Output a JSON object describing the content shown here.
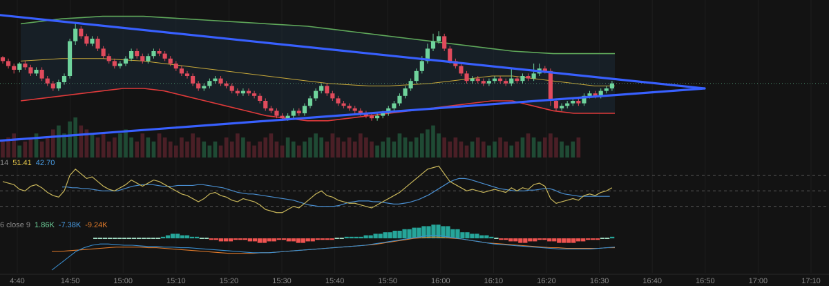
{
  "colors": {
    "background": "#131313",
    "up": "#6fd39c",
    "down": "#e04b5c",
    "trendline": "#3860ff",
    "bb_upper": "#5fa85a",
    "bb_lower": "#e03a3a",
    "bb_basis": "#c8a93a",
    "rsi_line": "#c8b65a",
    "rsi_ma": "#4a8fd1",
    "macd_line": "#3a8fd1",
    "signal_line": "#e07a2a",
    "grid": "#3a3a3a",
    "text": "#8a8a8a"
  },
  "rsi_header": {
    "length": "14",
    "value": "51.41",
    "ma": "42.70"
  },
  "macd_header": {
    "prefix": "6 close 9",
    "hist": "1.86K",
    "macd": "-7.38K",
    "signal": "-9.24K"
  },
  "chart_data": {
    "type": "candlestick",
    "x_axis": {
      "ticks": [
        "4:40",
        "14:50",
        "15:00",
        "15:10",
        "15:20",
        "15:30",
        "15:40",
        "15:50",
        "16:00",
        "16:10",
        "16:20",
        "16:30",
        "16:40",
        "16:50",
        "17:00",
        "17:10"
      ]
    },
    "price": {
      "ylim": [
        0,
        100
      ],
      "candles": [
        [
          65,
          62,
          66,
          60
        ],
        [
          62,
          58,
          64,
          56
        ],
        [
          58,
          55,
          60,
          52
        ],
        [
          55,
          60,
          61,
          53
        ],
        [
          60,
          57,
          62,
          55
        ],
        [
          57,
          52,
          59,
          50
        ],
        [
          52,
          55,
          57,
          50
        ],
        [
          55,
          48,
          57,
          46
        ],
        [
          48,
          44,
          50,
          42
        ],
        [
          44,
          40,
          46,
          38
        ],
        [
          40,
          45,
          47,
          38
        ],
        [
          45,
          50,
          52,
          43
        ],
        [
          50,
          78,
          80,
          48
        ],
        [
          78,
          88,
          92,
          75
        ],
        [
          88,
          82,
          90,
          80
        ],
        [
          82,
          76,
          84,
          74
        ],
        [
          76,
          80,
          82,
          74
        ],
        [
          80,
          72,
          82,
          70
        ],
        [
          72,
          66,
          74,
          64
        ],
        [
          66,
          62,
          68,
          60
        ],
        [
          62,
          58,
          64,
          56
        ],
        [
          58,
          60,
          62,
          56
        ],
        [
          60,
          64,
          66,
          58
        ],
        [
          64,
          70,
          72,
          62
        ],
        [
          70,
          66,
          72,
          64
        ],
        [
          66,
          62,
          68,
          60
        ],
        [
          62,
          66,
          68,
          60
        ],
        [
          66,
          70,
          72,
          64
        ],
        [
          70,
          68,
          72,
          66
        ],
        [
          68,
          64,
          70,
          62
        ],
        [
          64,
          60,
          66,
          58
        ],
        [
          60,
          56,
          62,
          54
        ],
        [
          56,
          52,
          58,
          50
        ],
        [
          52,
          50,
          54,
          48
        ],
        [
          50,
          44,
          52,
          42
        ],
        [
          44,
          40,
          46,
          38
        ],
        [
          40,
          42,
          44,
          38
        ],
        [
          42,
          46,
          48,
          40
        ],
        [
          46,
          48,
          50,
          44
        ],
        [
          48,
          44,
          50,
          42
        ],
        [
          44,
          42,
          46,
          40
        ],
        [
          42,
          38,
          44,
          36
        ],
        [
          38,
          36,
          40,
          34
        ],
        [
          36,
          38,
          40,
          34
        ],
        [
          38,
          36,
          40,
          34
        ],
        [
          36,
          34,
          38,
          32
        ],
        [
          34,
          30,
          36,
          28
        ],
        [
          30,
          24,
          32,
          22
        ],
        [
          24,
          22,
          26,
          20
        ],
        [
          22,
          18,
          24,
          16
        ],
        [
          18,
          16,
          20,
          14
        ],
        [
          16,
          18,
          20,
          14
        ],
        [
          18,
          22,
          24,
          16
        ],
        [
          22,
          20,
          24,
          18
        ],
        [
          20,
          26,
          28,
          18
        ],
        [
          26,
          32,
          34,
          24
        ],
        [
          32,
          38,
          40,
          30
        ],
        [
          38,
          42,
          44,
          36
        ],
        [
          42,
          36,
          44,
          34
        ],
        [
          36,
          32,
          38,
          30
        ],
        [
          32,
          28,
          34,
          26
        ],
        [
          28,
          26,
          30,
          24
        ],
        [
          26,
          24,
          28,
          22
        ],
        [
          24,
          22,
          26,
          20
        ],
        [
          22,
          20,
          24,
          18
        ],
        [
          20,
          18,
          22,
          16
        ],
        [
          18,
          16,
          20,
          14
        ],
        [
          16,
          18,
          20,
          14
        ],
        [
          18,
          20,
          22,
          16
        ],
        [
          20,
          24,
          26,
          18
        ],
        [
          24,
          28,
          30,
          22
        ],
        [
          28,
          34,
          36,
          26
        ],
        [
          34,
          40,
          42,
          32
        ],
        [
          40,
          46,
          48,
          38
        ],
        [
          46,
          54,
          56,
          44
        ],
        [
          54,
          62,
          66,
          52
        ],
        [
          62,
          72,
          76,
          60
        ],
        [
          72,
          78,
          84,
          70
        ],
        [
          78,
          82,
          86,
          76
        ],
        [
          82,
          72,
          84,
          70
        ],
        [
          72,
          62,
          74,
          60
        ],
        [
          62,
          58,
          64,
          56
        ],
        [
          58,
          52,
          60,
          50
        ],
        [
          52,
          46,
          54,
          44
        ],
        [
          46,
          48,
          50,
          44
        ],
        [
          48,
          46,
          50,
          44
        ],
        [
          46,
          44,
          48,
          42
        ],
        [
          44,
          46,
          48,
          42
        ],
        [
          46,
          48,
          50,
          44
        ],
        [
          48,
          46,
          50,
          44
        ],
        [
          46,
          44,
          48,
          42
        ],
        [
          44,
          48,
          56,
          42
        ],
        [
          48,
          46,
          50,
          44
        ],
        [
          46,
          50,
          52,
          44
        ],
        [
          50,
          48,
          52,
          46
        ],
        [
          48,
          52,
          60,
          46
        ],
        [
          52,
          56,
          60,
          50
        ],
        [
          56,
          54,
          58,
          52
        ],
        [
          54,
          30,
          56,
          26
        ],
        [
          30,
          24,
          32,
          22
        ],
        [
          24,
          26,
          28,
          22
        ],
        [
          26,
          28,
          30,
          24
        ],
        [
          28,
          30,
          32,
          26
        ],
        [
          30,
          28,
          32,
          26
        ],
        [
          28,
          34,
          36,
          26
        ],
        [
          34,
          36,
          38,
          32
        ],
        [
          36,
          34,
          38,
          32
        ],
        [
          34,
          38,
          40,
          32
        ],
        [
          38,
          40,
          42,
          36
        ],
        [
          40,
          44,
          46,
          38
        ]
      ],
      "bb_upper": [
        92,
        94,
        96,
        97,
        98,
        98,
        98,
        97,
        96,
        95,
        94,
        93,
        92,
        91,
        90,
        88,
        86,
        84,
        82,
        80,
        78,
        76,
        74,
        72,
        70,
        69,
        68,
        68,
        68,
        68
      ],
      "bb_basis": [
        62,
        63,
        64,
        64,
        64,
        63,
        62,
        60,
        58,
        56,
        54,
        52,
        50,
        48,
        46,
        44,
        43,
        42,
        42,
        43,
        44,
        46,
        48,
        50,
        50,
        48,
        46,
        44,
        42,
        42
      ],
      "bb_lower": [
        30,
        32,
        34,
        36,
        38,
        40,
        40,
        38,
        34,
        30,
        26,
        22,
        18,
        16,
        14,
        14,
        16,
        18,
        20,
        22,
        24,
        26,
        28,
        30,
        30,
        26,
        22,
        20,
        20,
        20
      ]
    },
    "trendlines": [
      {
        "from": [
          0,
          99
        ],
        "to": [
          140,
          40
        ]
      },
      {
        "from": [
          0,
          -2
        ],
        "to": [
          140,
          40
        ]
      }
    ],
    "volume": [
      4,
      5,
      6,
      3,
      4,
      5,
      6,
      4,
      5,
      7,
      8,
      6,
      9,
      10,
      8,
      7,
      6,
      5,
      6,
      4,
      5,
      6,
      7,
      5,
      4,
      6,
      5,
      4,
      6,
      5,
      4,
      3,
      5,
      4,
      6,
      5,
      4,
      3,
      4,
      3,
      5,
      4,
      6,
      5,
      4,
      3,
      4,
      5,
      6,
      4,
      3,
      5,
      4,
      3,
      4,
      5,
      6,
      5,
      4,
      6,
      5,
      4,
      5,
      4,
      6,
      5,
      4,
      3,
      4,
      5,
      4,
      6,
      5,
      4,
      5,
      6,
      7,
      8,
      6,
      5,
      4,
      5,
      4,
      3,
      4,
      5,
      4,
      3,
      4,
      5,
      4,
      3,
      4,
      5,
      6,
      5,
      4,
      5,
      6,
      5,
      4,
      3,
      4,
      5
    ],
    "rsi": {
      "levels": [
        70,
        50,
        30
      ],
      "values": [
        62,
        60,
        58,
        52,
        50,
        56,
        58,
        54,
        48,
        44,
        42,
        50,
        70,
        78,
        72,
        66,
        68,
        62,
        56,
        52,
        50,
        54,
        58,
        64,
        60,
        56,
        60,
        64,
        62,
        58,
        54,
        50,
        46,
        44,
        40,
        36,
        40,
        46,
        48,
        44,
        42,
        38,
        36,
        40,
        38,
        36,
        32,
        26,
        24,
        22,
        22,
        26,
        30,
        28,
        34,
        40,
        46,
        50,
        44,
        42,
        38,
        36,
        34,
        34,
        32,
        30,
        28,
        32,
        36,
        40,
        44,
        48,
        54,
        60,
        66,
        72,
        78,
        80,
        82,
        72,
        62,
        58,
        54,
        50,
        52,
        50,
        48,
        50,
        52,
        50,
        48,
        54,
        50,
        54,
        52,
        58,
        60,
        56,
        40,
        34,
        36,
        38,
        40,
        38,
        44,
        46,
        44,
        48,
        50,
        54
      ],
      "ma": [
        55,
        55,
        54,
        54,
        53,
        53,
        52,
        51,
        50,
        50,
        50,
        50,
        52,
        54,
        56,
        57,
        58,
        58,
        58,
        57,
        56,
        56,
        56,
        57,
        57,
        57,
        57,
        58,
        58,
        57,
        56,
        55,
        54,
        52,
        50,
        48,
        47,
        46,
        46,
        45,
        44,
        43,
        42,
        41,
        40,
        39,
        38,
        36,
        34,
        32,
        31,
        30,
        30,
        30,
        30,
        31,
        33,
        35,
        36,
        37,
        37,
        37,
        36,
        36,
        35,
        34,
        33,
        33,
        34,
        35,
        37,
        39,
        42,
        45,
        49,
        53,
        57,
        61,
        64,
        66,
        66,
        65,
        63,
        61,
        59,
        57,
        55,
        53,
        52,
        51,
        50,
        50,
        50,
        51,
        51,
        52,
        53,
        53,
        51,
        48,
        46,
        45,
        44,
        43,
        43,
        43,
        43,
        43,
        43,
        43
      ]
    },
    "macd": {
      "hist": [
        0,
        0,
        0,
        0,
        0,
        0,
        0,
        0,
        0,
        0,
        0,
        0,
        0,
        0,
        1,
        2,
        3,
        3,
        2,
        2,
        1,
        1,
        0,
        0,
        -1,
        -1,
        -2,
        -2,
        -2,
        -1,
        -1,
        -1,
        -2,
        -2,
        -3,
        -3,
        -2,
        -2,
        -1,
        -1,
        -2,
        -2,
        -3,
        -3,
        -2,
        -2,
        -1,
        -1,
        -1,
        -1,
        0,
        0,
        1,
        1,
        1,
        1,
        2,
        2,
        3,
        3,
        4,
        4,
        5,
        5,
        6,
        6,
        7,
        7,
        8,
        8,
        9,
        9,
        8,
        8,
        6,
        6,
        4,
        4,
        3,
        3,
        2,
        2,
        1,
        0,
        -1,
        -1,
        -2,
        -2,
        -3,
        -3,
        -2,
        -2,
        -1,
        -1,
        -2,
        -2,
        -3,
        -3,
        -3,
        -3,
        -2,
        -2,
        -1,
        -1,
        -1,
        0,
        0,
        1
      ],
      "macd": [
        -40,
        -30,
        -20,
        -10,
        -4,
        0,
        2,
        2,
        1,
        0,
        0,
        -1,
        -2,
        -2,
        -3,
        -3,
        -4,
        -4,
        -5,
        -6,
        -7,
        -8,
        -9,
        -10,
        -11,
        -12,
        -12,
        -12,
        -11,
        -10,
        -9,
        -8,
        -7,
        -6,
        -5,
        -4,
        -3,
        -2,
        -1,
        0,
        2,
        4,
        6,
        8,
        10,
        12,
        14,
        16,
        16,
        14,
        12,
        10,
        8,
        6,
        4,
        2,
        1,
        0,
        -1,
        -2,
        -3,
        -4,
        -5,
        -6,
        -6,
        -6,
        -6,
        -6,
        -5,
        -4,
        -3
      ],
      "signal": [
        -10,
        -10,
        -9,
        -8,
        -7,
        -6,
        -5,
        -4,
        -3,
        -3,
        -3,
        -3,
        -4,
        -4,
        -5,
        -6,
        -7,
        -8,
        -9,
        -10,
        -11,
        -12,
        -13,
        -13,
        -13,
        -13,
        -12,
        -12,
        -11,
        -10,
        -9,
        -8,
        -7,
        -6,
        -5,
        -4,
        -3,
        -2,
        -1,
        0,
        1,
        3,
        5,
        7,
        9,
        11,
        12,
        13,
        13,
        12,
        11,
        10,
        8,
        6,
        4,
        3,
        2,
        1,
        0,
        -1,
        -2,
        -3,
        -4,
        -4,
        -5,
        -5,
        -5,
        -5,
        -5,
        -4,
        -4
      ]
    }
  }
}
